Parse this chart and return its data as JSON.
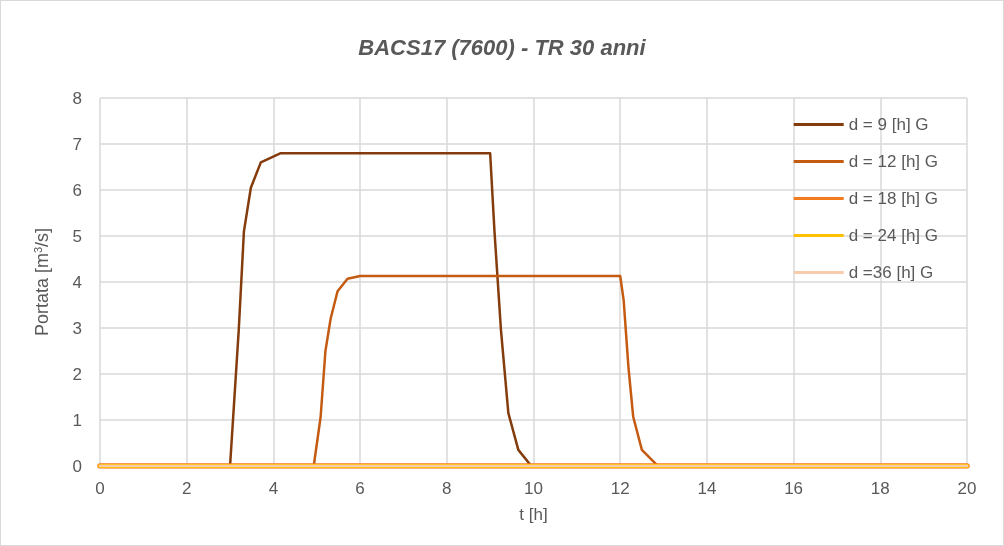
{
  "chart_data": {
    "type": "line",
    "title": "BACS17 (7600) - TR 30 anni",
    "xlabel": "t [h]",
    "ylabel": "Portata [m$^{3}$/s]",
    "xlim": [
      0,
      20
    ],
    "xticks": [
      0,
      2,
      4,
      6,
      8,
      10,
      12,
      14,
      16,
      18,
      20
    ],
    "ylim": [
      0,
      8
    ],
    "yticks": [
      0,
      1,
      2,
      3,
      4,
      5,
      6,
      7,
      8
    ],
    "grid": true,
    "legend": "top right",
    "marker": "none",
    "line_style": "solid",
    "series": [
      {
        "name": "d = 9 [h] G",
        "color": "#843c0c",
        "x": [
          0,
          3.0,
          3.2,
          3.32,
          3.48,
          3.71,
          4.17,
          9.0,
          9.1,
          9.25,
          9.42,
          9.65,
          9.93,
          10,
          20
        ],
        "values": [
          0,
          0,
          2.95,
          5.1,
          6.05,
          6.6,
          6.8,
          6.8,
          5.1,
          2.95,
          1.15,
          0.35,
          0.02,
          0,
          0
        ]
      },
      {
        "name": "d = 12 [h] G",
        "color": "#c55a11",
        "x": [
          0,
          4.93,
          5.09,
          5.2,
          5.32,
          5.48,
          5.71,
          6.0,
          12.0,
          12.08,
          12.19,
          12.3,
          12.5,
          12.85,
          13,
          20
        ],
        "values": [
          0,
          0,
          1.07,
          2.5,
          3.2,
          3.8,
          4.07,
          4.13,
          4.13,
          3.6,
          2.15,
          1.07,
          0.35,
          0.02,
          0,
          0
        ]
      },
      {
        "name": "d = 18 [h] G",
        "color": "#f47a1f",
        "x": [
          0,
          20
        ],
        "values": [
          0,
          0
        ]
      },
      {
        "name": "d = 24 [h] G",
        "color": "#ffc000",
        "x": [
          0,
          20
        ],
        "values": [
          0,
          0
        ]
      },
      {
        "name": "d =36 [h] G",
        "color": "#f8cbad",
        "x": [
          0,
          20
        ],
        "values": [
          0,
          0
        ]
      }
    ]
  }
}
